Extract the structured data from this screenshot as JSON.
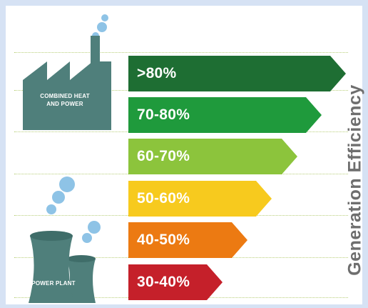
{
  "axis_title": "Generation Efficiency",
  "icons": {
    "chp": {
      "label_line1": "COMBINED HEAT",
      "label_line2": "AND POWER"
    },
    "plant": {
      "label": "POWER PLANT"
    }
  },
  "bars": [
    {
      "label": ">80%",
      "color": "#1e6e33"
    },
    {
      "label": "70-80%",
      "color": "#1f9a3c"
    },
    {
      "label": "60-70%",
      "color": "#8cc43c"
    },
    {
      "label": "50-60%",
      "color": "#f7ca1e"
    },
    {
      "label": "40-50%",
      "color": "#ec7a12"
    },
    {
      "label": "30-40%",
      "color": "#c5202a"
    }
  ]
}
